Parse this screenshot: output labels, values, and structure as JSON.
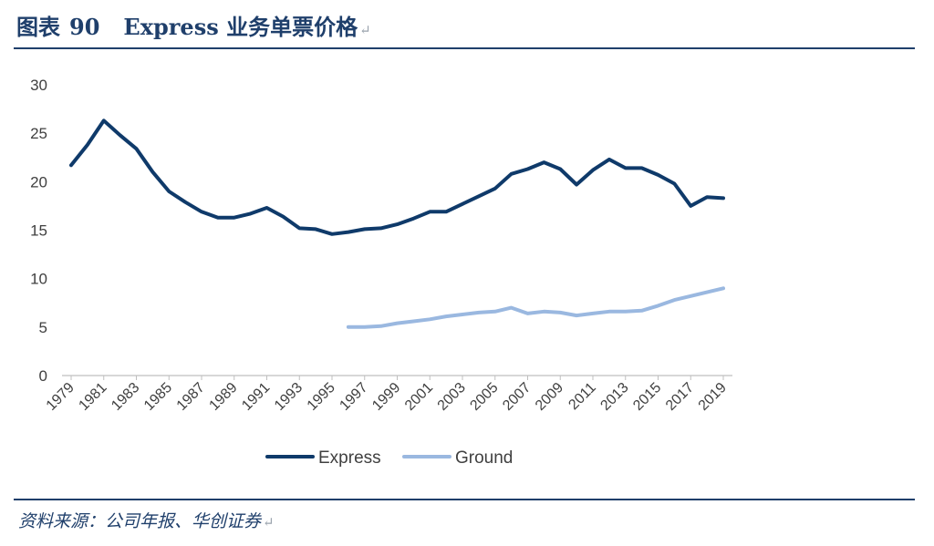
{
  "header": {
    "label": "图表",
    "number": "90",
    "text": "Express 业务单票价格",
    "return_mark": "↵"
  },
  "source": {
    "text": "资料来源：公司年报、华创证券",
    "return_mark": "↵"
  },
  "colors": {
    "title": "#1f3f6b",
    "express": "#0f3a6a",
    "ground": "#9ab8e0",
    "axis": "#bfbfbf",
    "tick_text": "#404040"
  },
  "chart_data": {
    "type": "line",
    "title": "Express 业务单票价格",
    "xlabel": "",
    "ylabel": "",
    "x": [
      1979,
      1980,
      1981,
      1982,
      1983,
      1984,
      1985,
      1986,
      1987,
      1988,
      1989,
      1990,
      1991,
      1992,
      1993,
      1994,
      1995,
      1996,
      1997,
      1998,
      1999,
      2000,
      2001,
      2002,
      2003,
      2004,
      2005,
      2006,
      2007,
      2008,
      2009,
      2010,
      2011,
      2012,
      2013,
      2014,
      2015,
      2016,
      2017,
      2018,
      2019
    ],
    "xticks": [
      "1979",
      "1981",
      "1983",
      "1985",
      "1987",
      "1989",
      "1991",
      "1993",
      "1995",
      "1997",
      "1999",
      "2001",
      "2003",
      "2005",
      "2007",
      "2009",
      "2011",
      "2013",
      "2015",
      "2017",
      "2019"
    ],
    "yticks": [
      "0",
      "5",
      "10",
      "15",
      "20",
      "25",
      "30"
    ],
    "ylim": [
      0,
      30
    ],
    "grid": false,
    "legend_position": "bottom",
    "series": [
      {
        "name": "Express",
        "values": [
          21.7,
          23.8,
          26.3,
          24.8,
          23.4,
          21.0,
          19.0,
          17.9,
          16.9,
          16.3,
          16.3,
          16.7,
          17.3,
          16.4,
          15.2,
          15.1,
          14.6,
          14.8,
          15.1,
          15.2,
          15.6,
          16.2,
          16.9,
          16.9,
          17.7,
          18.5,
          19.3,
          20.8,
          21.3,
          22.0,
          21.3,
          19.7,
          21.2,
          22.3,
          21.4,
          21.4,
          20.7,
          19.8,
          17.5,
          18.4,
          18.3
        ]
      },
      {
        "name": "Ground",
        "values": [
          null,
          null,
          null,
          null,
          null,
          null,
          null,
          null,
          null,
          null,
          null,
          null,
          null,
          null,
          null,
          null,
          null,
          5.0,
          5.0,
          5.1,
          5.4,
          5.6,
          5.8,
          6.1,
          6.3,
          6.5,
          6.6,
          7.0,
          6.4,
          6.6,
          6.5,
          6.2,
          6.4,
          6.6,
          6.6,
          6.7,
          7.2,
          7.8,
          8.2,
          8.6,
          9.0
        ]
      }
    ]
  }
}
